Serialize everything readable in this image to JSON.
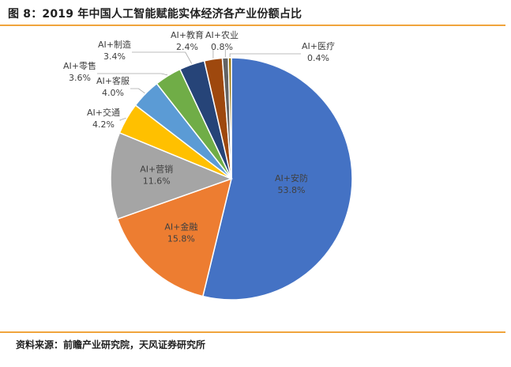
{
  "title": "图 8：2019 年中国人工智能赋能实体经济各产业份额占比",
  "source": "资料来源：前瞻产业研究院，天风证券研究所",
  "chart_data": {
    "type": "pie",
    "title": "",
    "slices": [
      {
        "name": "AI+安防",
        "value": 53.8,
        "label": "53.8%",
        "color": "#4472c4"
      },
      {
        "name": "AI+金融",
        "value": 15.8,
        "label": "15.8%",
        "color": "#ed7d31"
      },
      {
        "name": "AI+营销",
        "value": 11.6,
        "label": "11.6%",
        "color": "#a5a5a5"
      },
      {
        "name": "AI+交通",
        "value": 4.2,
        "label": "4.2%",
        "color": "#ffc000"
      },
      {
        "name": "AI+客服",
        "value": 4.0,
        "label": "4.0%",
        "color": "#5b9bd5"
      },
      {
        "name": "AI+零售",
        "value": 3.6,
        "label": "3.6%",
        "color": "#70ad47"
      },
      {
        "name": "AI+制造",
        "value": 3.4,
        "label": "3.4%",
        "color": "#264478"
      },
      {
        "name": "AI+教育",
        "value": 2.4,
        "label": "2.4%",
        "color": "#9e480e"
      },
      {
        "name": "AI+农业",
        "value": 0.8,
        "label": "0.8%",
        "color": "#636363"
      },
      {
        "name": "AI+医疗",
        "value": 0.4,
        "label": "0.4%",
        "color": "#997300"
      }
    ]
  }
}
